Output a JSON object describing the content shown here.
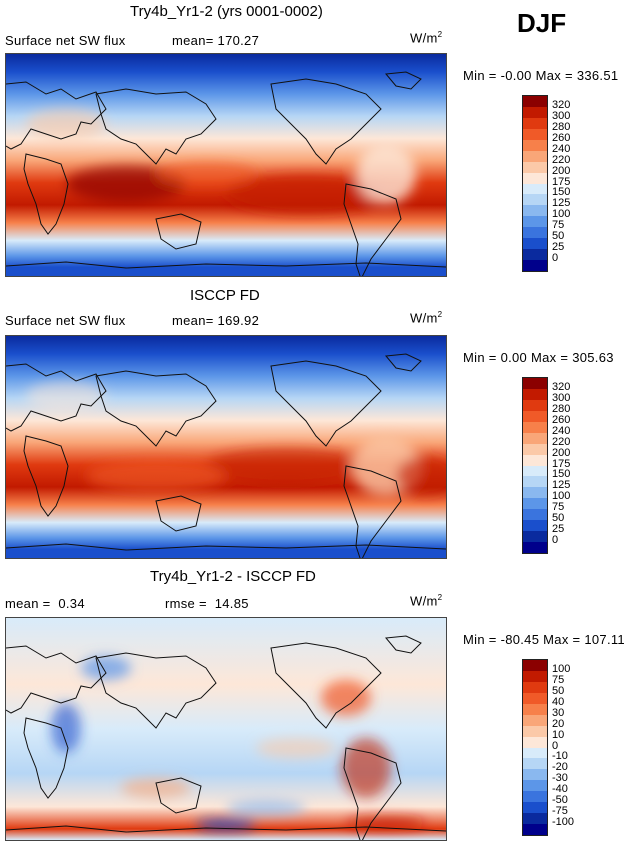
{
  "season": "DJF",
  "chart_data": [
    {
      "type": "heatmap",
      "title": "Try4b_Yr1-2 (yrs 0001-0002)",
      "field_label": "Surface net SW flux",
      "mean_label": "mean=",
      "mean": "170.27",
      "units": "W/m",
      "units_sup": "2",
      "min_label": "Min =",
      "min": "-0.00",
      "max_label": "Max =",
      "max": "336.51",
      "colorbar": {
        "labels": [
          "320",
          "300",
          "280",
          "260",
          "240",
          "220",
          "200",
          "175",
          "150",
          "125",
          "100",
          "75",
          "50",
          "25",
          "0"
        ],
        "colors": [
          "#8b0000",
          "#c21a00",
          "#e03a10",
          "#f05a28",
          "#f7804a",
          "#f9a678",
          "#fbc9a8",
          "#fde7d8",
          "#d8ebfa",
          "#b6d6f5",
          "#8ab8ef",
          "#5c96e8",
          "#3a74de",
          "#1a4fcc",
          "#0a2a9e",
          "#00008b"
        ]
      }
    },
    {
      "type": "heatmap",
      "title": "ISCCP FD",
      "field_label": "Surface net SW flux",
      "mean_label": "mean=",
      "mean": "169.92",
      "units": "W/m",
      "units_sup": "2",
      "min_label": "Min =",
      "min": "0.00",
      "max_label": "Max =",
      "max": "305.63",
      "colorbar": {
        "labels": [
          "320",
          "300",
          "280",
          "260",
          "240",
          "220",
          "200",
          "175",
          "150",
          "125",
          "100",
          "75",
          "50",
          "25",
          "0"
        ],
        "colors": [
          "#8b0000",
          "#c21a00",
          "#e03a10",
          "#f05a28",
          "#f7804a",
          "#f9a678",
          "#fbc9a8",
          "#fde7d8",
          "#d8ebfa",
          "#b6d6f5",
          "#8ab8ef",
          "#5c96e8",
          "#3a74de",
          "#1a4fcc",
          "#0a2a9e",
          "#00008b"
        ]
      }
    },
    {
      "type": "heatmap",
      "title": "Try4b_Yr1-2 - ISCCP FD",
      "mean_label": "mean =",
      "mean": "0.34",
      "rmse_label": "rmse =",
      "rmse": "14.85",
      "units": "W/m",
      "units_sup": "2",
      "min_label": "Min =",
      "min": "-80.45",
      "max_label": "Max =",
      "max": "107.11",
      "colorbar": {
        "labels": [
          "100",
          "75",
          "50",
          "40",
          "30",
          "20",
          "10",
          "0",
          "-10",
          "-20",
          "-30",
          "-40",
          "-50",
          "-75",
          "-100"
        ],
        "colors": [
          "#8b0000",
          "#c21a00",
          "#e03a10",
          "#f05a28",
          "#f7804a",
          "#f9a678",
          "#fbc9a8",
          "#fde7d8",
          "#d8ebfa",
          "#b6d6f5",
          "#8ab8ef",
          "#5c96e8",
          "#3a74de",
          "#1a4fcc",
          "#0a2a9e",
          "#00008b"
        ]
      }
    }
  ]
}
